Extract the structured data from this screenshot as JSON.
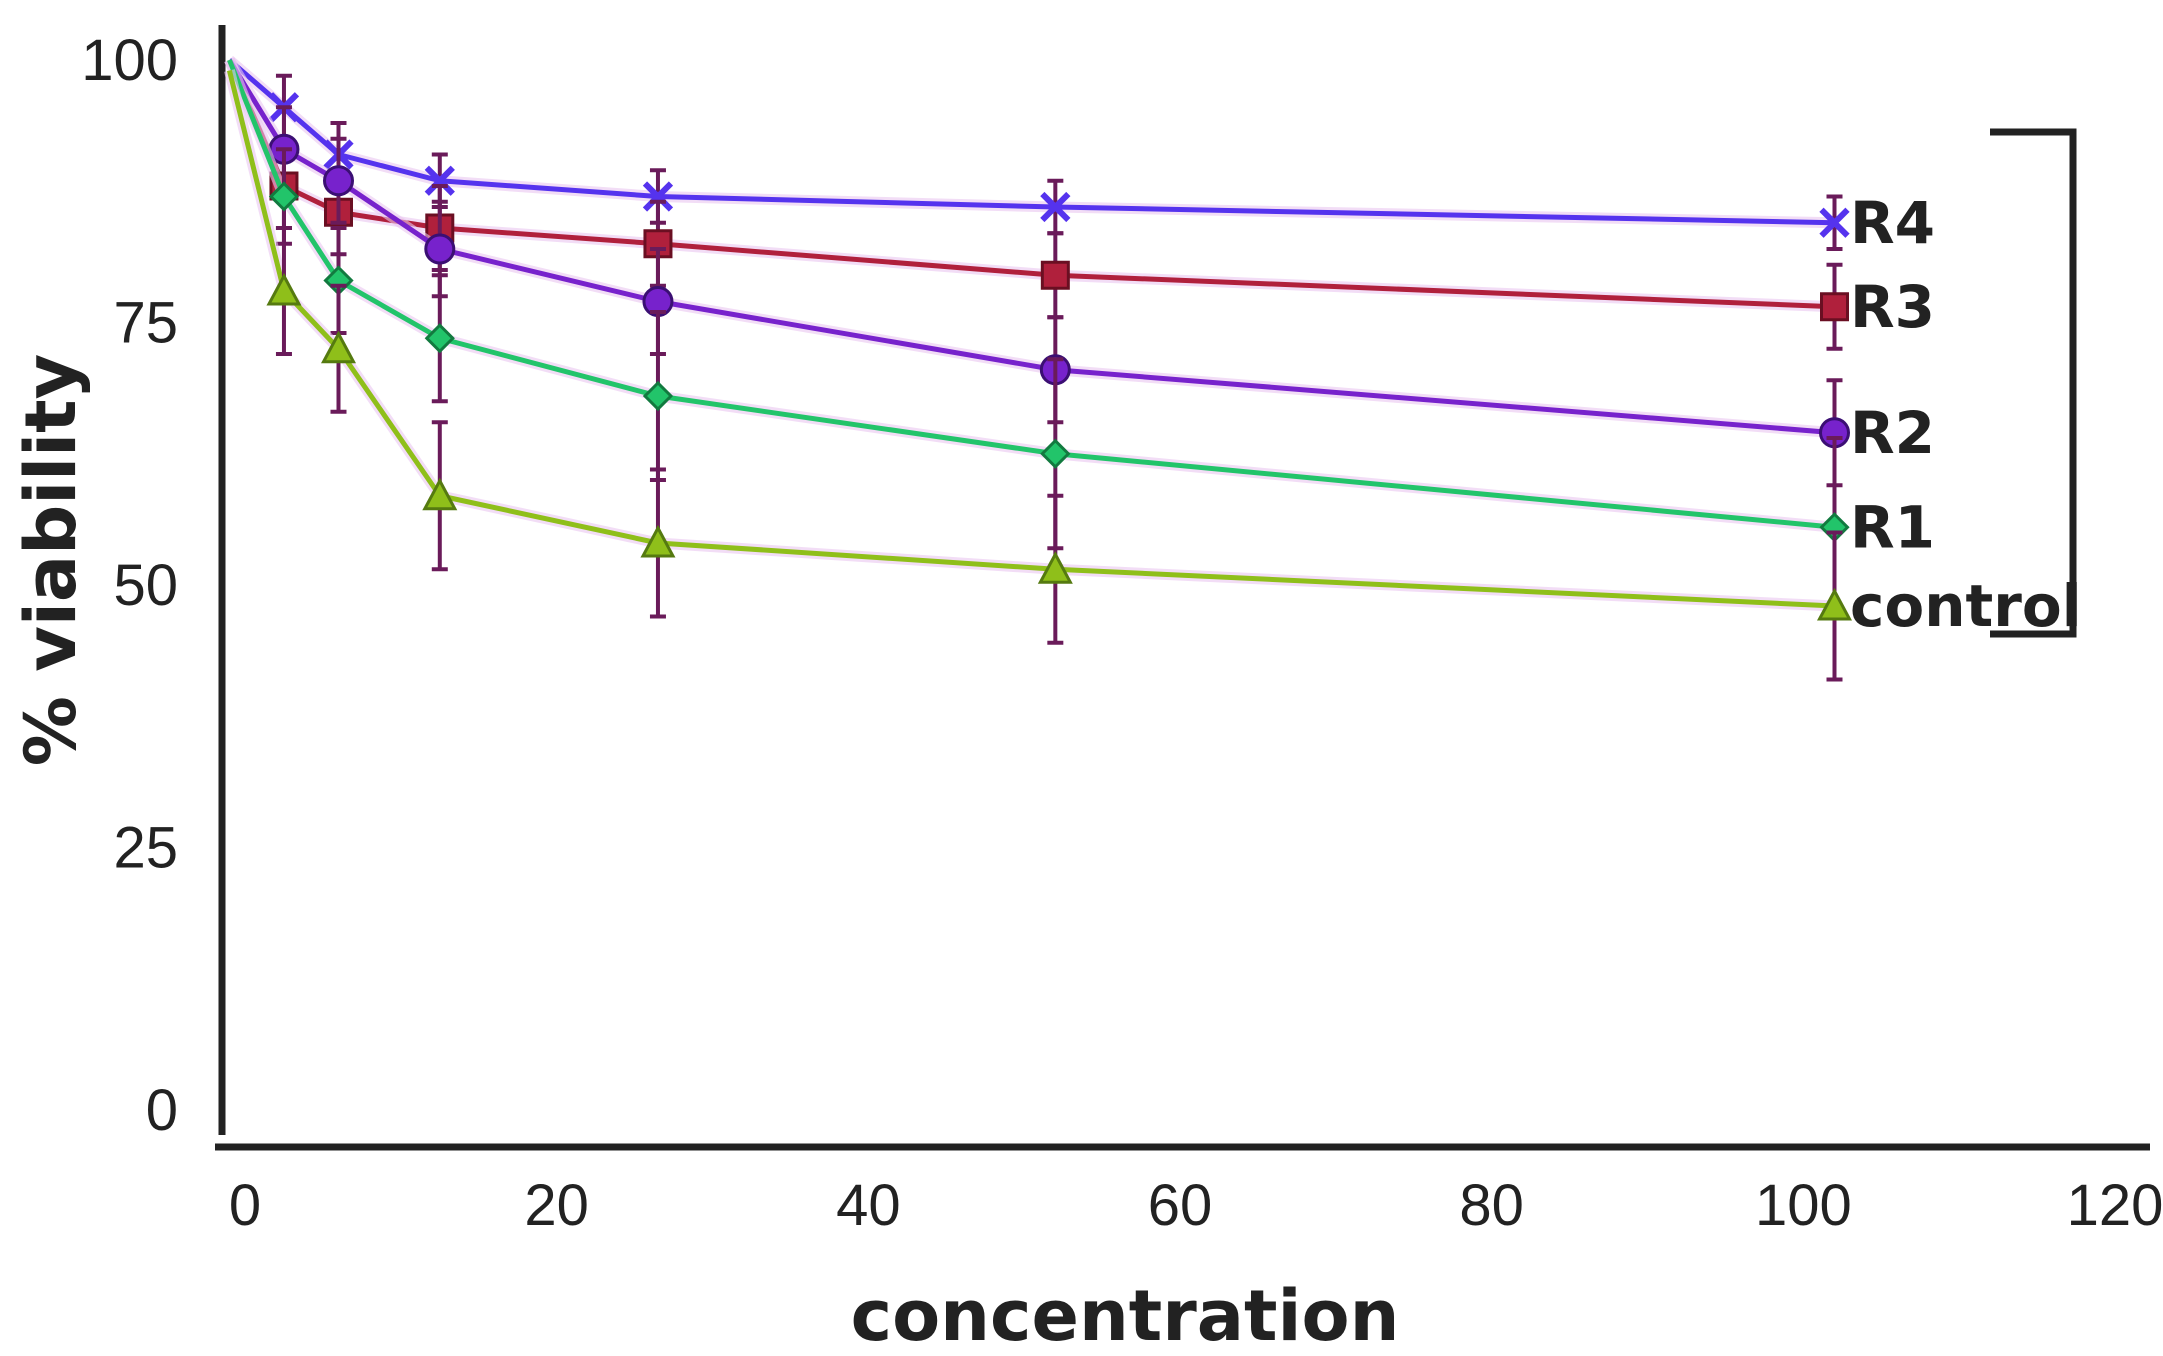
{
  "chart_data": {
    "type": "line",
    "title": "",
    "xlabel": "concentration",
    "ylabel": "% viability",
    "xlim": [
      0,
      120
    ],
    "ylim": [
      0,
      100
    ],
    "xticks": [
      "0",
      "20",
      "40",
      "60",
      "80",
      "100",
      "120"
    ],
    "yticks": [
      "0",
      "25",
      "50",
      "75",
      "100"
    ],
    "x": [
      -1,
      2.5,
      6,
      12.5,
      26.5,
      52,
      102
    ],
    "series": [
      {
        "name": "R4",
        "label": "R4",
        "color": "#5533ee",
        "marker": "x",
        "values": [
          100,
          95.5,
          91,
          88.5,
          87,
          86,
          84.5
        ],
        "errors": [
          0,
          3,
          3,
          2.5,
          2.5,
          2.5,
          2.5
        ]
      },
      {
        "name": "R3",
        "label": "R3",
        "color": "#b0203c",
        "marker": "square",
        "values": [
          100,
          88,
          85.5,
          84,
          82.5,
          79.5,
          76.5
        ],
        "errors": [
          0,
          4,
          4,
          4,
          4,
          4,
          4
        ]
      },
      {
        "name": "R2",
        "label": "R2",
        "color": "#7722cc",
        "marker": "circle",
        "values": [
          100,
          91.5,
          88.5,
          82,
          77,
          70.5,
          64.5
        ],
        "errors": [
          0,
          4,
          4,
          4.5,
          5,
          5,
          5
        ]
      },
      {
        "name": "R1",
        "label": "R1",
        "color": "#22c46a",
        "marker": "diamond",
        "values": [
          100,
          87,
          79,
          73.5,
          68,
          62.5,
          55.5
        ],
        "errors": [
          0,
          4.5,
          5,
          6,
          8,
          9,
          8.5
        ]
      },
      {
        "name": "control",
        "label": "control",
        "color": "#8fbf1a",
        "marker": "triangle",
        "values": [
          99,
          78,
          72.5,
          58.5,
          54,
          51.5,
          48
        ],
        "errors": [
          0,
          6,
          6,
          7,
          7,
          7,
          7
        ]
      }
    ],
    "bracket": "right"
  }
}
